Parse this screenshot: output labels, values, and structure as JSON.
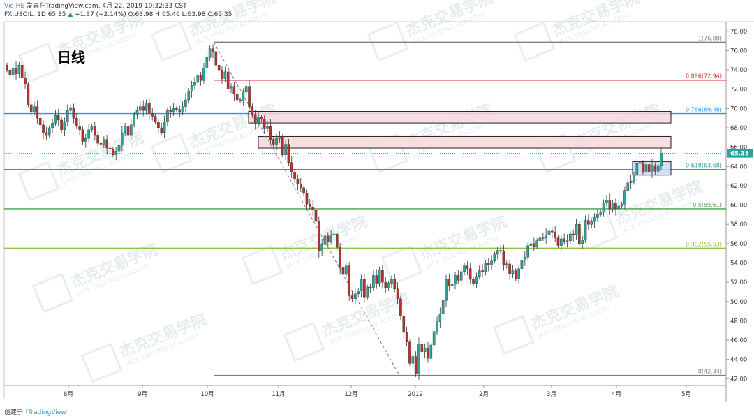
{
  "header": {
    "source": "Vic-HE",
    "published": "发表在TradingView.com, 4月 22, 2019 10:32:33 CST",
    "symbol_line": "FX:USOIL, 1D 65.35",
    "change_arrow": "▲",
    "change": "+1.37 (+2.14%)",
    "ohlc": "O:63.98 H:65.46 L:63.98 C:65.35"
  },
  "badge": "日线",
  "footer": {
    "created": "创建于",
    "brand": "TradingView"
  },
  "watermark": {
    "cn": "杰克交易学院",
    "en": "JACK TRADING ACADEMY"
  },
  "price_tag": "65.35",
  "colors": {
    "up": "#26a69a",
    "down": "#b7312c",
    "accent": "#4a90c8"
  },
  "chart_data": {
    "type": "candlestick",
    "x_ticks": [
      "8月",
      "9月",
      "10月",
      "11月",
      "12月",
      "2019",
      "2月",
      "3月",
      "4月",
      "5月"
    ],
    "y_ticks": [
      "42.00",
      "44.00",
      "46.00",
      "48.00",
      "50.00",
      "52.00",
      "54.00",
      "56.00",
      "58.00",
      "60.00",
      "62.00",
      "64.00",
      "66.00",
      "68.00",
      "70.00",
      "72.00",
      "74.00",
      "76.00",
      "78.00"
    ],
    "ylim": [
      41.3,
      79.0
    ],
    "fib_levels": [
      {
        "label": "1(76.88)",
        "value": 76.88,
        "color": "#808080"
      },
      {
        "label": "0.886(72.94)",
        "value": 72.94,
        "color": "#d32f2f"
      },
      {
        "label": "0.786(69.48)",
        "value": 69.48,
        "color": "#2196f3"
      },
      {
        "label": "0.618(63.68)",
        "value": 63.68,
        "color": "#26a69a"
      },
      {
        "label": "0.5(59.61)",
        "value": 59.61,
        "color": "#43a047"
      },
      {
        "label": "0.382(55.53)",
        "value": 55.53,
        "color": "#8bc34a"
      },
      {
        "label": "0(42.34)",
        "value": 42.34,
        "color": "#808080"
      }
    ],
    "zones": [
      {
        "name": "resistance-upper",
        "top": 69.7,
        "bottom": 68.5,
        "fill": "#f8d7da"
      },
      {
        "name": "resistance-lower",
        "top": 67.1,
        "bottom": 65.9,
        "fill": "#f8d7da"
      },
      {
        "name": "consolidation",
        "top": 64.5,
        "bottom": 63.1,
        "fill": "#cfd8f5"
      }
    ],
    "last_price": 65.35,
    "closes": [
      74,
      73.5,
      74.2,
      73.6,
      74.5,
      73.2,
      72.5,
      70.4,
      69.6,
      70.2,
      69,
      68.3,
      67.5,
      67.2,
      68,
      68.5,
      69.3,
      68.8,
      67.8,
      68.6,
      69.8,
      70.1,
      69,
      68.2,
      67.8,
      66.6,
      66.9,
      67.8,
      68.2,
      67.2,
      66.4,
      66.3,
      66.8,
      65.9,
      65.8,
      65.2,
      65.6,
      66.2,
      67.5,
      68.2,
      67.2,
      68.3,
      69.4,
      69.8,
      70.2,
      69.8,
      70.6,
      69.5,
      69.2,
      68.6,
      68,
      67.5,
      68.6,
      69.8,
      69.7,
      70,
      69.9,
      69.6,
      70.2,
      70.9,
      71.8,
      72.4,
      72.7,
      73.4,
      72.9,
      74.2,
      75.3,
      76.2,
      75.9,
      74.5,
      74,
      73.1,
      73.8,
      72,
      72.3,
      71.5,
      70.9,
      70.8,
      71.7,
      72.3,
      70.2,
      69.4,
      68.5,
      69.1,
      68.9,
      67.9,
      68.2,
      66.8,
      66.3,
      66.9,
      67.1,
      65.2,
      66.3,
      64.4,
      63.4,
      62.7,
      62.2,
      61.8,
      61.2,
      60.1,
      59.8,
      59.5,
      58.3,
      55.2,
      55.9,
      56.8,
      56.2,
      56.9,
      57,
      55.6,
      53.5,
      52.8,
      53.7,
      50.6,
      50.3,
      50.8,
      51.1,
      52.3,
      50.4,
      51.5,
      51.4,
      52.7,
      51.9,
      53.3,
      52,
      51.4,
      51.9,
      52.3,
      51.3,
      50.3,
      48.5,
      46.8,
      45.8,
      43.6,
      44.3,
      42.5,
      45.6,
      44.8,
      45.2,
      44.1,
      45.5,
      46.9,
      47.9,
      48.7,
      50.1,
      52.3,
      51.6,
      51.8,
      52.7,
      52.2,
      53.1,
      53.7,
      53.4,
      52.3,
      51.9,
      52.6,
      53.2,
      53.1,
      54,
      53.8,
      54.2,
      54.9,
      55.3,
      55.2,
      53.8,
      53.9,
      52.9,
      53.2,
      52.4,
      53.4,
      54.3,
      54.6,
      55.8,
      56,
      55.7,
      56.3,
      56.6,
      56.6,
      56.9,
      57.3,
      57.2,
      56.6,
      55.8,
      56.5,
      56.2,
      56.3,
      57,
      56.9,
      58,
      56,
      56.4,
      58.4,
      58,
      58.3,
      58.7,
      59,
      59.3,
      60.2,
      60.5,
      59.6,
      60.2,
      59.6,
      59.9,
      60.1,
      61.5,
      62.3,
      62.5,
      63.1,
      64.3,
      64.4,
      63.4,
      64.2,
      63.4,
      64.1,
      63.5,
      64.1,
      65.35
    ]
  }
}
